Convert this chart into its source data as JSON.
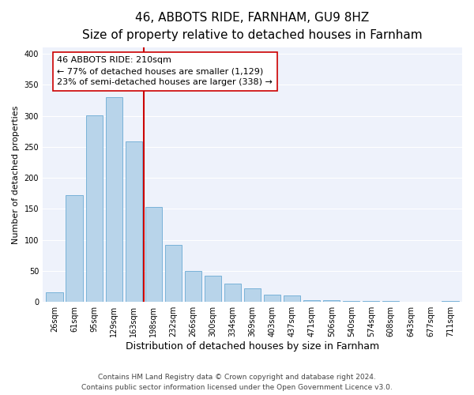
{
  "title": "46, ABBOTS RIDE, FARNHAM, GU9 8HZ",
  "subtitle": "Size of property relative to detached houses in Farnham",
  "xlabel": "Distribution of detached houses by size in Farnham",
  "ylabel": "Number of detached properties",
  "bar_labels": [
    "26sqm",
    "61sqm",
    "95sqm",
    "129sqm",
    "163sqm",
    "198sqm",
    "232sqm",
    "266sqm",
    "300sqm",
    "334sqm",
    "369sqm",
    "403sqm",
    "437sqm",
    "471sqm",
    "506sqm",
    "540sqm",
    "574sqm",
    "608sqm",
    "643sqm",
    "677sqm",
    "711sqm"
  ],
  "bar_values": [
    15,
    172,
    301,
    330,
    259,
    153,
    92,
    50,
    42,
    29,
    22,
    12,
    11,
    3,
    3,
    2,
    1,
    1,
    0,
    0,
    2
  ],
  "bar_color": "#b8d4ea",
  "bar_edge_color": "#6aaad4",
  "vline_x": 4.5,
  "vline_color": "#cc0000",
  "annotation_text": "46 ABBOTS RIDE: 210sqm\n← 77% of detached houses are smaller (1,129)\n23% of semi-detached houses are larger (338) →",
  "annotation_box_color": "white",
  "annotation_box_edge": "#cc0000",
  "ylim": [
    0,
    410
  ],
  "yticks": [
    0,
    50,
    100,
    150,
    200,
    250,
    300,
    350,
    400
  ],
  "bg_color": "#eef2fb",
  "footer_line1": "Contains HM Land Registry data © Crown copyright and database right 2024.",
  "footer_line2": "Contains public sector information licensed under the Open Government Licence v3.0.",
  "title_fontsize": 11,
  "subtitle_fontsize": 9,
  "xlabel_fontsize": 9,
  "ylabel_fontsize": 8,
  "tick_fontsize": 7,
  "footer_fontsize": 6.5,
  "ann_fontsize": 8
}
